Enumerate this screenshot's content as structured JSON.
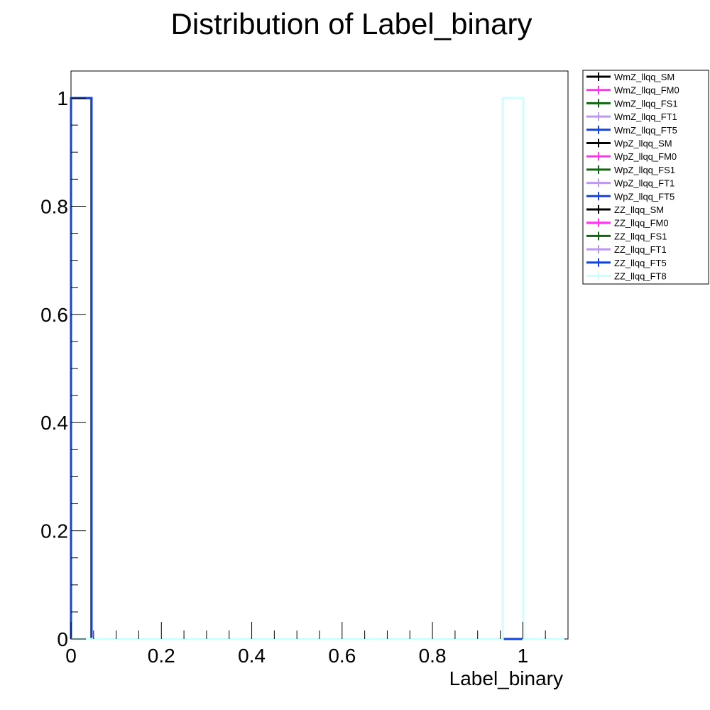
{
  "chart_data": {
    "type": "bar",
    "title": "Distribution of Label_binary",
    "xlabel": "Label_binary",
    "ylabel": "",
    "xlim": [
      0,
      1.1
    ],
    "ylim": [
      0,
      1.05
    ],
    "x_ticks": [
      {
        "value": 0,
        "label": "0"
      },
      {
        "value": 0.2,
        "label": "0.2"
      },
      {
        "value": 0.4,
        "label": "0.4"
      },
      {
        "value": 0.6,
        "label": "0.6"
      },
      {
        "value": 0.8,
        "label": "0.8"
      },
      {
        "value": 1,
        "label": "1"
      }
    ],
    "y_ticks": [
      {
        "value": 0,
        "label": "0"
      },
      {
        "value": 0.2,
        "label": "0.2"
      },
      {
        "value": 0.4,
        "label": "0.4"
      },
      {
        "value": 0.6,
        "label": "0.6"
      },
      {
        "value": 0.8,
        "label": "0.8"
      },
      {
        "value": 1,
        "label": "1"
      }
    ],
    "bins": {
      "start": 0,
      "width": 0.0455,
      "count": 24
    },
    "grid": false,
    "legend_position": "outside-top-right",
    "series": [
      {
        "name": "WmZ_llqq_SM",
        "color": "#000000",
        "values_nonzero": [
          {
            "bin": 0,
            "value": 1
          }
        ]
      },
      {
        "name": "WmZ_llqq_FM0",
        "color": "#ff33ee",
        "values_nonzero": [
          {
            "bin": 0,
            "value": 1
          }
        ]
      },
      {
        "name": "WmZ_llqq_FS1",
        "color": "#116611",
        "values_nonzero": [
          {
            "bin": 0,
            "value": 1
          }
        ]
      },
      {
        "name": "WmZ_llqq_FT1",
        "color": "#bb99ee",
        "values_nonzero": [
          {
            "bin": 0,
            "value": 1
          }
        ]
      },
      {
        "name": "WmZ_llqq_FT5",
        "color": "#1144dd",
        "values_nonzero": [
          {
            "bin": 0,
            "value": 1
          }
        ]
      },
      {
        "name": "WpZ_llqq_SM",
        "color": "#000000",
        "values_nonzero": [
          {
            "bin": 0,
            "value": 1
          }
        ]
      },
      {
        "name": "WpZ_llqq_FM0",
        "color": "#ff33ee",
        "values_nonzero": [
          {
            "bin": 0,
            "value": 1
          }
        ]
      },
      {
        "name": "WpZ_llqq_FS1",
        "color": "#116611",
        "values_nonzero": [
          {
            "bin": 0,
            "value": 1
          }
        ]
      },
      {
        "name": "WpZ_llqq_FT1",
        "color": "#bb99ee",
        "values_nonzero": [
          {
            "bin": 0,
            "value": 1
          }
        ]
      },
      {
        "name": "WpZ_llqq_FT5",
        "color": "#1144dd",
        "values_nonzero": [
          {
            "bin": 0,
            "value": 1
          }
        ]
      },
      {
        "name": "ZZ_llqq_SM",
        "color": "#000000",
        "values_nonzero": [
          {
            "bin": 0,
            "value": 1
          }
        ]
      },
      {
        "name": "ZZ_llqq_FM0",
        "color": "#ff33ee",
        "values_nonzero": [
          {
            "bin": 0,
            "value": 1
          }
        ]
      },
      {
        "name": "ZZ_llqq_FS1",
        "color": "#116611",
        "values_nonzero": [
          {
            "bin": 0,
            "value": 1
          }
        ]
      },
      {
        "name": "ZZ_llqq_FT1",
        "color": "#bb99ee",
        "values_nonzero": [
          {
            "bin": 0,
            "value": 1
          }
        ]
      },
      {
        "name": "ZZ_llqq_FT5",
        "color": "#1144dd",
        "values_nonzero": [
          {
            "bin": 0,
            "value": 1
          }
        ]
      },
      {
        "name": "ZZ_llqq_FT8",
        "color": "#ccffff",
        "values_nonzero": [
          {
            "bin": 21,
            "value": 1
          }
        ]
      }
    ]
  }
}
